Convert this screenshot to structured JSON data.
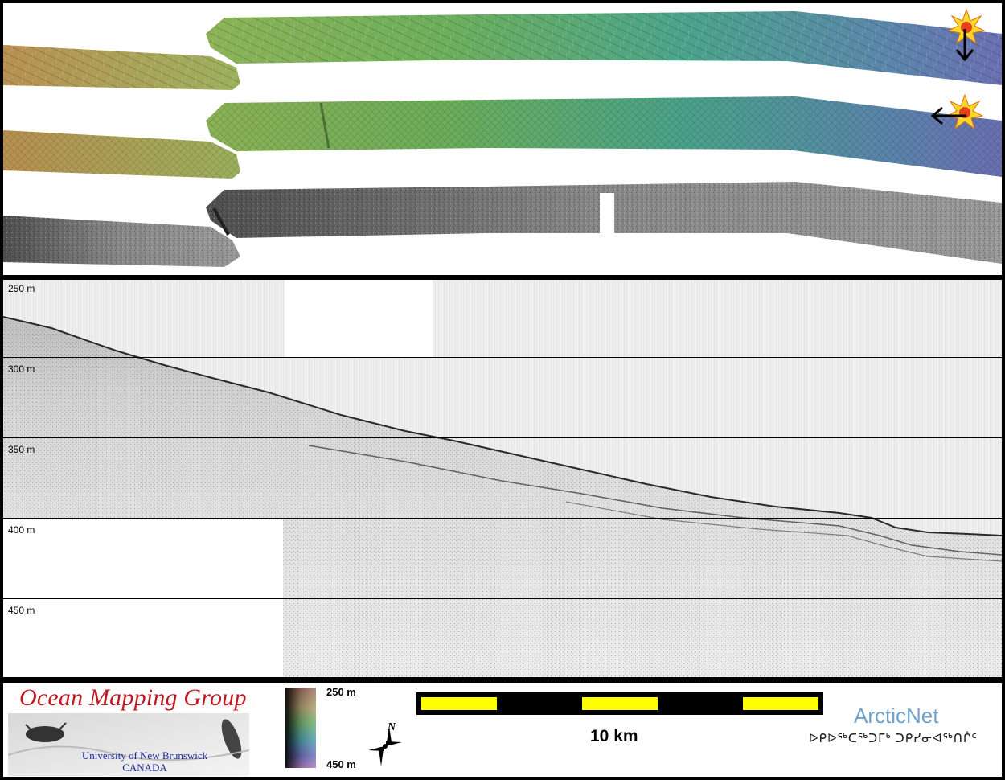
{
  "profile": {
    "depth_labels": [
      "250 m",
      "300 m",
      "350 m",
      "400 m",
      "450 m"
    ]
  },
  "legend": {
    "logo_title": "Ocean Mapping Group",
    "logo_subtitle_1": "University of New Brunswick",
    "logo_subtitle_2": "CANADA",
    "colorbar_top": "250 m",
    "colorbar_bottom": "450 m",
    "north_label": "N",
    "scale_label": "10 km",
    "partner_name": "ArcticNet",
    "partner_inuktitut": "ᐅᑭᐅᖅᑕᖅᑐᒥᒃ ᑐᑭᓯᓂᐊᖅᑎᒌᑦ"
  },
  "colors": {
    "bathy_shallow": "#b89050",
    "bathy_mid": "#6cae5a",
    "bathy_deep": "#6a6fb2",
    "scale_yellow": "#ffff00",
    "logo_red": "#c01820",
    "logo_blue": "#1a2a9a",
    "arcticnet_blue": "#6fa2cc"
  },
  "icons": [
    "sun-illumination-icon",
    "arrow-down-icon",
    "arrow-left-icon",
    "north-arrow-icon"
  ]
}
